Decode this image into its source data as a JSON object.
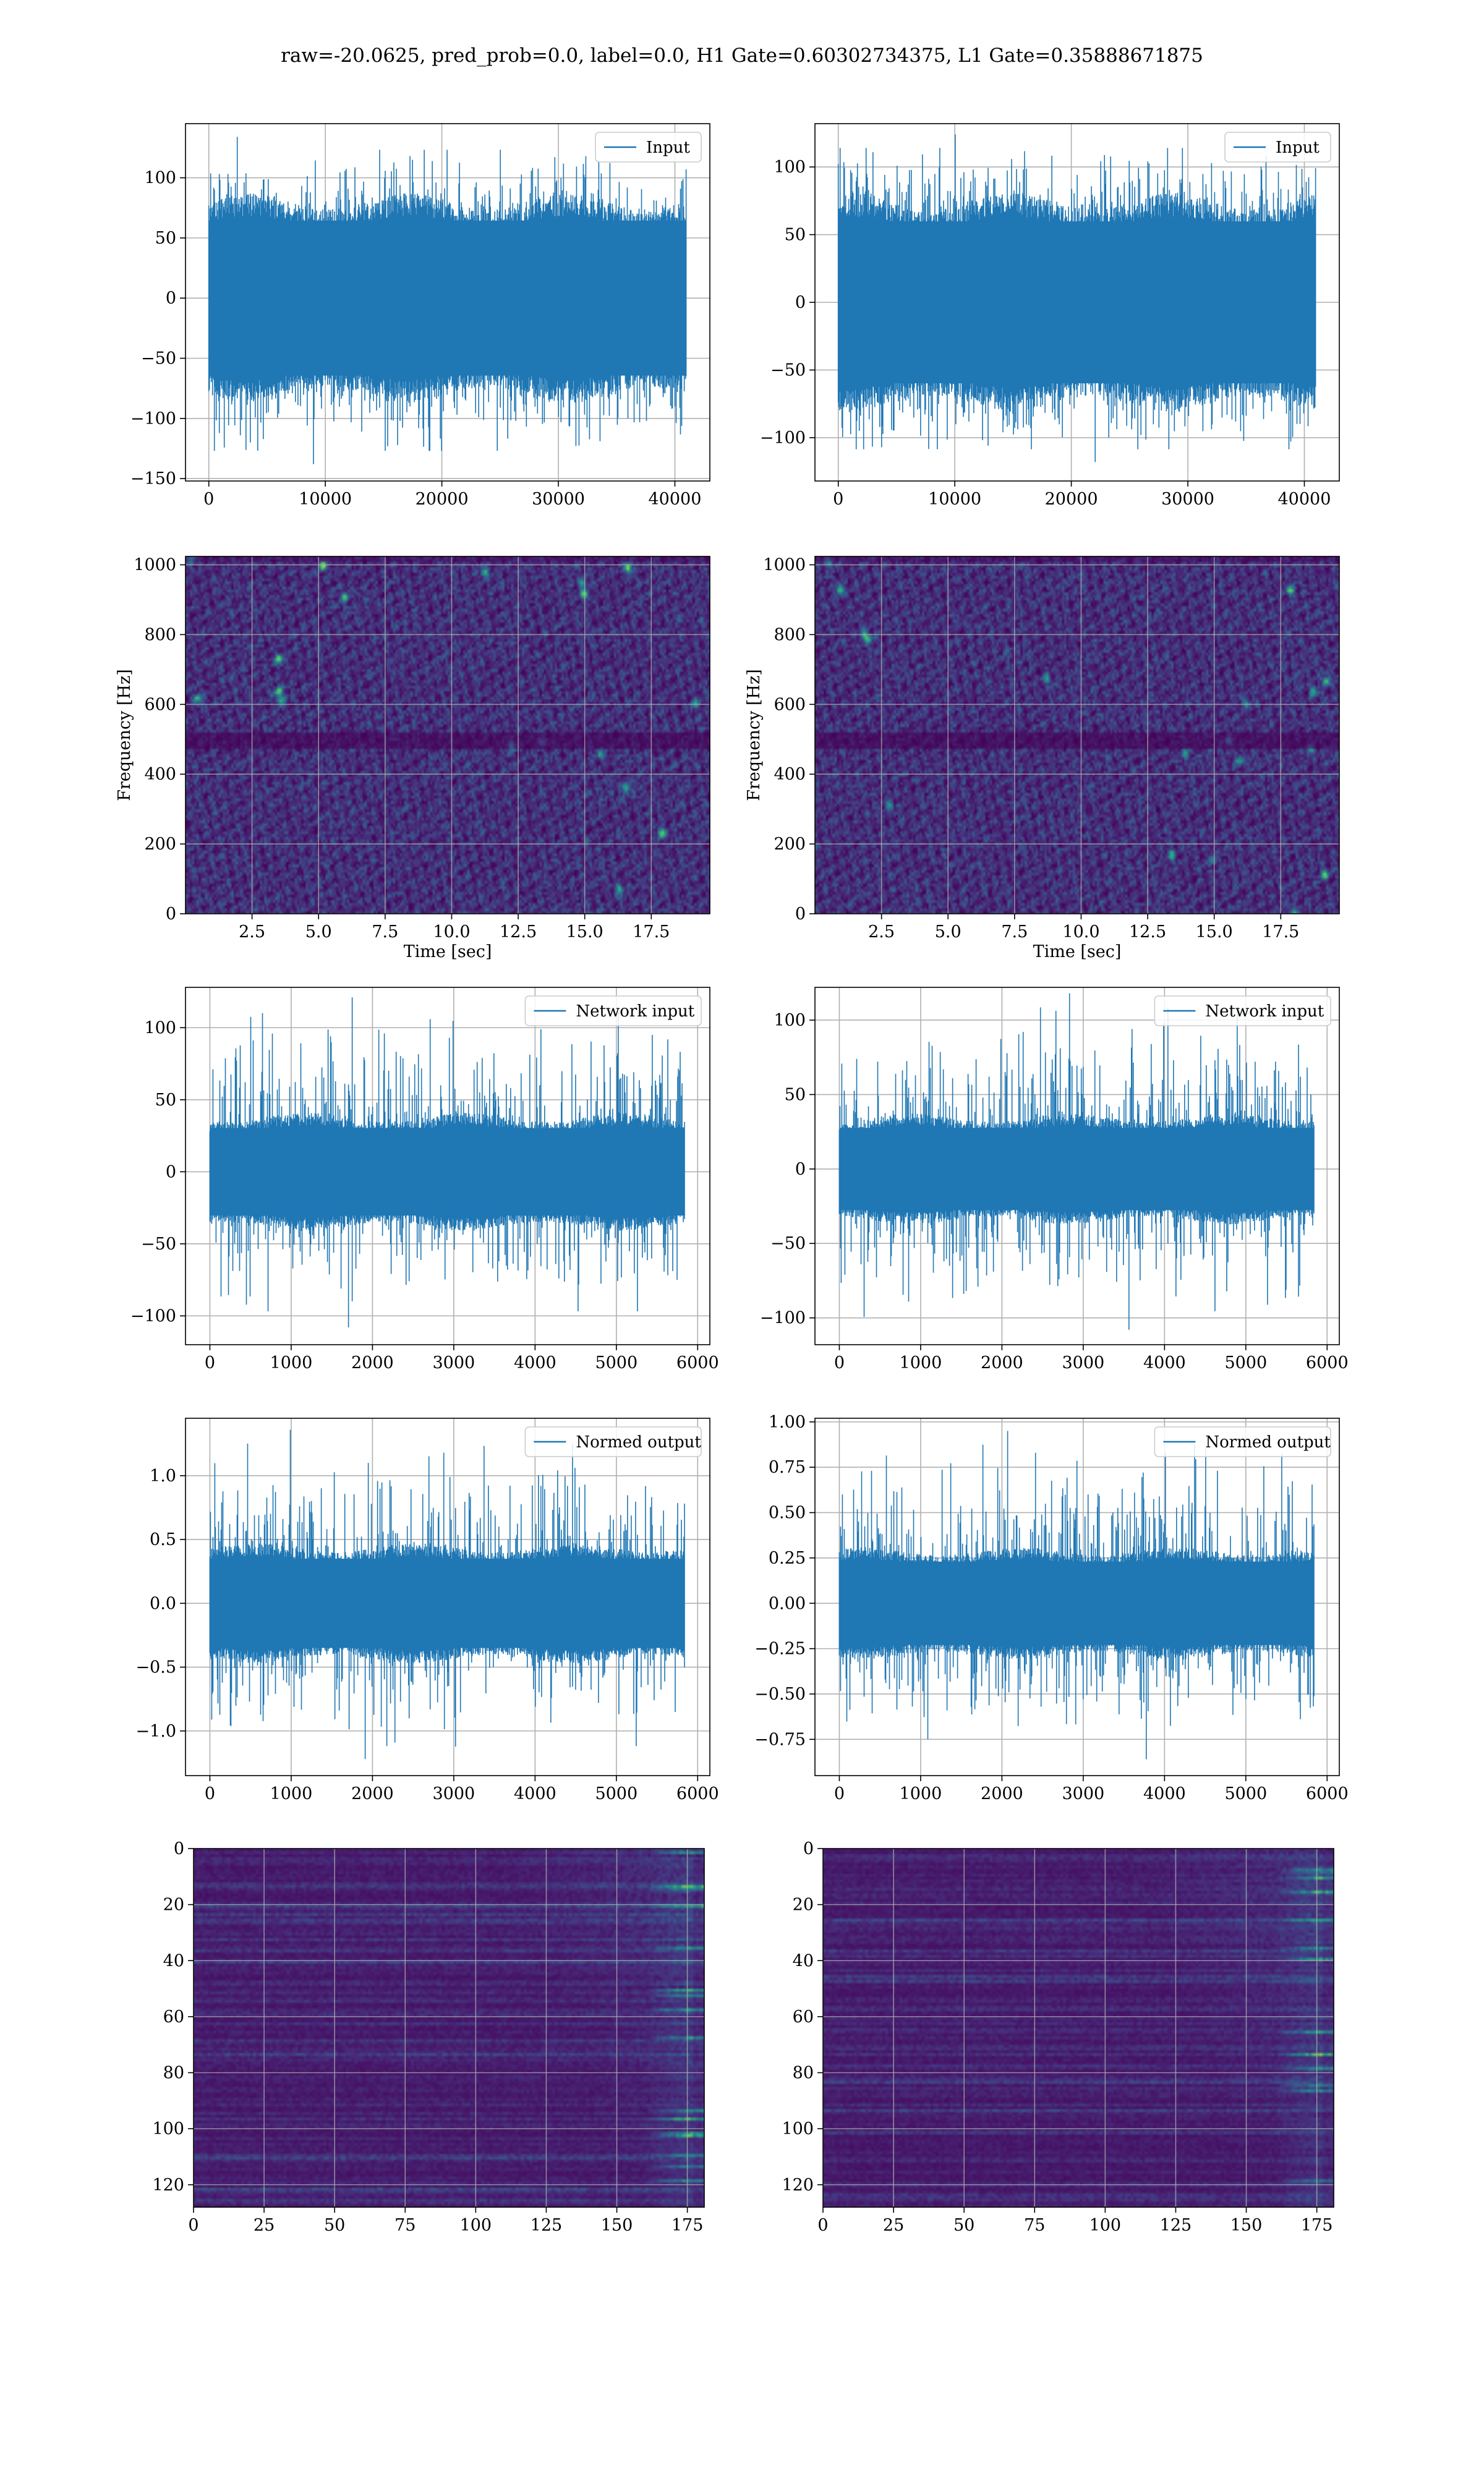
{
  "figure": {
    "suptitle": "raw=-20.0625, pred_prob=0.0, label=0.0, H1 Gate=0.60302734375, L1 Gate=0.35888671875"
  },
  "colors": {
    "line": "#1f77b4",
    "grid": "#b0b0b0",
    "viridis_low": "#440154",
    "viridis_mid": "#21918c",
    "viridis_high": "#fde725"
  },
  "chart_data": [
    {
      "id": "h1-input",
      "type": "line",
      "legend": "Input",
      "legend_loc": "upper right",
      "grid": true,
      "xlim": [
        -2000,
        43000
      ],
      "ylim": [
        -152,
        145
      ],
      "xticks": [
        0,
        10000,
        20000,
        30000,
        40000
      ],
      "xtick_labels": [
        "0",
        "10000",
        "20000",
        "30000",
        "40000"
      ],
      "yticks": [
        -150,
        -100,
        -50,
        0,
        50,
        100
      ],
      "ytick_labels": [
        "−150",
        "−100",
        "−50",
        "0",
        "50",
        "100"
      ],
      "signal": {
        "n": 40960,
        "x_start": 0,
        "x_end": 40960,
        "body_abs": 70,
        "peak_min": -138,
        "peak_max": 134
      }
    },
    {
      "id": "l1-input",
      "type": "line",
      "legend": "Input",
      "legend_loc": "upper right",
      "grid": true,
      "xlim": [
        -2000,
        43000
      ],
      "ylim": [
        -132,
        132
      ],
      "xticks": [
        0,
        10000,
        20000,
        30000,
        40000
      ],
      "xtick_labels": [
        "0",
        "10000",
        "20000",
        "30000",
        "40000"
      ],
      "yticks": [
        -100,
        -50,
        0,
        50,
        100
      ],
      "ytick_labels": [
        "−100",
        "−50",
        "0",
        "50",
        "100"
      ],
      "signal": {
        "n": 40960,
        "x_start": 0,
        "x_end": 40960,
        "body_abs": 65,
        "peak_min": -118,
        "peak_max": 124
      }
    },
    {
      "id": "h1-spectrogram",
      "type": "heatmap",
      "grid": true,
      "colormap": "viridis",
      "xlim": [
        0,
        19.7
      ],
      "ylim": [
        0,
        1024
      ],
      "xticks": [
        2.5,
        5.0,
        7.5,
        10.0,
        12.5,
        15.0,
        17.5
      ],
      "xtick_labels": [
        "2.5",
        "5.0",
        "7.5",
        "10.0",
        "12.5",
        "15.0",
        "17.5"
      ],
      "yticks": [
        0,
        200,
        400,
        600,
        800,
        1000
      ],
      "ytick_labels": [
        "0",
        "200",
        "400",
        "600",
        "800",
        "1000"
      ],
      "xlabel": "Time [sec]",
      "ylabel": "Frequency [Hz]",
      "dark_band_hz": [
        480,
        520
      ]
    },
    {
      "id": "l1-spectrogram",
      "type": "heatmap",
      "grid": true,
      "colormap": "viridis",
      "xlim": [
        0,
        19.7
      ],
      "ylim": [
        0,
        1024
      ],
      "xticks": [
        2.5,
        5.0,
        7.5,
        10.0,
        12.5,
        15.0,
        17.5
      ],
      "xtick_labels": [
        "2.5",
        "5.0",
        "7.5",
        "10.0",
        "12.5",
        "15.0",
        "17.5"
      ],
      "yticks": [
        0,
        200,
        400,
        600,
        800,
        1000
      ],
      "ytick_labels": [
        "0",
        "200",
        "400",
        "600",
        "800",
        "1000"
      ],
      "xlabel": "Time [sec]",
      "ylabel": "Frequency [Hz]",
      "dark_band_hz": [
        480,
        520
      ]
    },
    {
      "id": "h1-network-input",
      "type": "line",
      "legend": "Network input",
      "legend_loc": "upper right",
      "grid": true,
      "xlim": [
        -300,
        6150
      ],
      "ylim": [
        -120,
        128
      ],
      "xticks": [
        0,
        1000,
        2000,
        3000,
        4000,
        5000,
        6000
      ],
      "xtick_labels": [
        "0",
        "1000",
        "2000",
        "3000",
        "4000",
        "5000",
        "6000"
      ],
      "yticks": [
        -100,
        -50,
        0,
        50,
        100
      ],
      "ytick_labels": [
        "−100",
        "−50",
        "0",
        "50",
        "100"
      ],
      "signal": {
        "n": 5838,
        "x_start": 0,
        "x_end": 5838,
        "body_abs": 33,
        "peak_min": -108,
        "peak_max": 121
      }
    },
    {
      "id": "l1-network-input",
      "type": "line",
      "legend": "Network input",
      "legend_loc": "upper right",
      "grid": true,
      "xlim": [
        -300,
        6150
      ],
      "ylim": [
        -118,
        122
      ],
      "xticks": [
        0,
        1000,
        2000,
        3000,
        4000,
        5000,
        6000
      ],
      "xtick_labels": [
        "0",
        "1000",
        "2000",
        "3000",
        "4000",
        "5000",
        "6000"
      ],
      "yticks": [
        -100,
        -50,
        0,
        50,
        100
      ],
      "ytick_labels": [
        "−100",
        "−50",
        "0",
        "50",
        "100"
      ],
      "signal": {
        "n": 5838,
        "x_start": 0,
        "x_end": 5838,
        "body_abs": 30,
        "peak_min": -108,
        "peak_max": 118
      }
    },
    {
      "id": "h1-normed-output",
      "type": "line",
      "legend": "Normed output",
      "legend_loc": "upper right",
      "grid": true,
      "xlim": [
        -300,
        6150
      ],
      "ylim": [
        -1.35,
        1.45
      ],
      "xticks": [
        0,
        1000,
        2000,
        3000,
        4000,
        5000,
        6000
      ],
      "xtick_labels": [
        "0",
        "1000",
        "2000",
        "3000",
        "4000",
        "5000",
        "6000"
      ],
      "yticks": [
        -1.0,
        -0.5,
        0.0,
        0.5,
        1.0
      ],
      "ytick_labels": [
        "−1.0",
        "−0.5",
        "0.0",
        "0.5",
        "1.0"
      ],
      "signal": {
        "n": 5838,
        "x_start": 0,
        "x_end": 5838,
        "body_abs": 0.38,
        "peak_min": -1.22,
        "peak_max": 1.36
      }
    },
    {
      "id": "l1-normed-output",
      "type": "line",
      "legend": "Normed output",
      "legend_loc": "upper right",
      "grid": true,
      "xlim": [
        -300,
        6150
      ],
      "ylim": [
        -0.95,
        1.02
      ],
      "xticks": [
        0,
        1000,
        2000,
        3000,
        4000,
        5000,
        6000
      ],
      "xtick_labels": [
        "0",
        "1000",
        "2000",
        "3000",
        "4000",
        "5000",
        "6000"
      ],
      "yticks": [
        -0.75,
        -0.5,
        -0.25,
        0.0,
        0.25,
        0.5,
        0.75,
        1.0
      ],
      "ytick_labels": [
        "−0.75",
        "−0.50",
        "−0.25",
        "0.00",
        "0.25",
        "0.50",
        "0.75",
        "1.00"
      ],
      "signal": {
        "n": 5838,
        "x_start": 0,
        "x_end": 5838,
        "body_abs": 0.25,
        "peak_min": -0.86,
        "peak_max": 0.95
      }
    },
    {
      "id": "h1-feature-map",
      "type": "heatmap",
      "grid": true,
      "colormap": "viridis",
      "xlim": [
        0,
        181
      ],
      "ylim": [
        128,
        0
      ],
      "xticks": [
        0,
        25,
        50,
        75,
        100,
        125,
        150,
        175
      ],
      "xtick_labels": [
        "0",
        "25",
        "50",
        "75",
        "100",
        "125",
        "150",
        "175"
      ],
      "yticks": [
        0,
        20,
        40,
        60,
        80,
        100,
        120
      ],
      "ytick_labels": [
        "0",
        "20",
        "40",
        "60",
        "80",
        "100",
        "120"
      ],
      "rows": 128,
      "cols": 181
    },
    {
      "id": "l1-feature-map",
      "type": "heatmap",
      "grid": true,
      "colormap": "viridis",
      "xlim": [
        0,
        181
      ],
      "ylim": [
        128,
        0
      ],
      "xticks": [
        0,
        25,
        50,
        75,
        100,
        125,
        150,
        175
      ],
      "xtick_labels": [
        "0",
        "25",
        "50",
        "75",
        "100",
        "125",
        "150",
        "175"
      ],
      "yticks": [
        0,
        20,
        40,
        60,
        80,
        100,
        120
      ],
      "ytick_labels": [
        "0",
        "20",
        "40",
        "60",
        "80",
        "100",
        "120"
      ],
      "rows": 128,
      "cols": 181
    }
  ]
}
